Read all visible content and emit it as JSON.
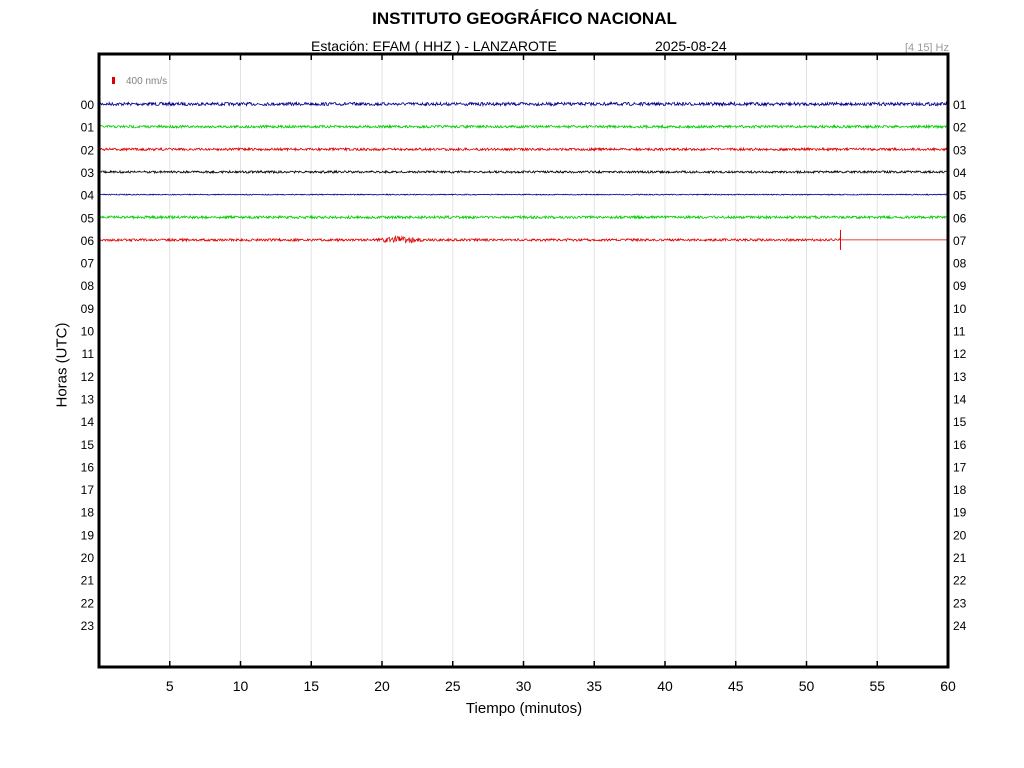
{
  "header": {
    "title": "INSTITUTO GEOGRÁFICO NACIONAL",
    "station": "Estación:  EFAM ( HHZ ) - LANZAROTE",
    "date": "2025-08-24",
    "filter": "[4 15] Hz"
  },
  "scale": {
    "label": "400 nm/s",
    "color": "#dd0000"
  },
  "chart_data": {
    "type": "line",
    "xlabel": "Tiempo (minutos)",
    "ylabel": "Horas (UTC)",
    "xlim": [
      0,
      60
    ],
    "x_ticks": [
      5,
      10,
      15,
      20,
      25,
      30,
      35,
      40,
      45,
      50,
      55,
      60
    ],
    "left_ticks": [
      "00",
      "01",
      "02",
      "03",
      "04",
      "05",
      "06",
      "07",
      "08",
      "09",
      "10",
      "11",
      "12",
      "13",
      "14",
      "15",
      "16",
      "17",
      "18",
      "19",
      "20",
      "21",
      "22",
      "23"
    ],
    "right_ticks": [
      "01",
      "02",
      "03",
      "04",
      "05",
      "06",
      "07",
      "08",
      "09",
      "10",
      "11",
      "12",
      "13",
      "14",
      "15",
      "16",
      "17",
      "18",
      "19",
      "20",
      "21",
      "22",
      "23",
      "24"
    ],
    "grid": "vertical",
    "traces": [
      {
        "hour": "00",
        "color": "#00008b",
        "noise": 1.6,
        "end_minute": 60
      },
      {
        "hour": "01",
        "color": "#00cc00",
        "noise": 1.3,
        "end_minute": 60
      },
      {
        "hour": "02",
        "color": "#dd0000",
        "noise": 1.2,
        "end_minute": 60
      },
      {
        "hour": "03",
        "color": "#000000",
        "noise": 1.1,
        "end_minute": 60
      },
      {
        "hour": "04",
        "color": "#00008b",
        "noise": 0.5,
        "end_minute": 60
      },
      {
        "hour": "05",
        "color": "#00cc00",
        "noise": 1.3,
        "end_minute": 60
      },
      {
        "hour": "06",
        "color": "#dd0000",
        "noise": 1.2,
        "end_minute": 52.4,
        "events": [
          {
            "minute": 21.3,
            "amplitude": 3
          },
          {
            "minute": 52.4,
            "amplitude": 10
          }
        ]
      }
    ]
  }
}
